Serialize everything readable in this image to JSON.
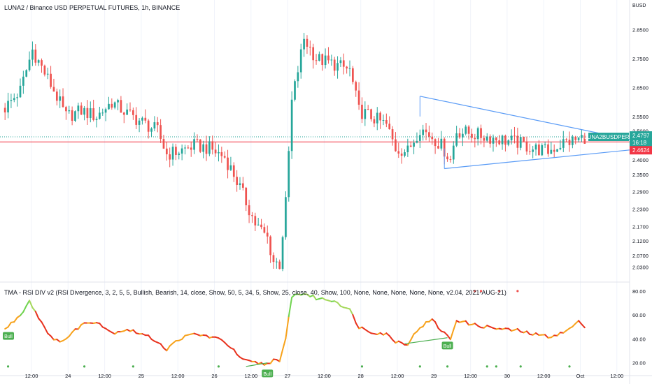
{
  "header": {
    "title": "LUNA2 / Binance USD PERPETUAL FUTURES, 1h, BINANCE",
    "currency": "BUSD"
  },
  "indicator": {
    "title": "TMA - RSI DIV v2 ",
    "params": "(RSI Divergence, 3, 2, 5, 5, Bullish, Bearish, 14, close, Show, 50, 5, 34, 5, Show, 25, close, 40, Show, 100, None, None, None, None, None, v2.04, 2021-AUG-21)",
    "bull_label": "Bull"
  },
  "price_tags": {
    "symbol": "LUNA2BUSDPERP",
    "last_price": "2.4797",
    "countdown": "16:18",
    "red_level": "2.4624"
  },
  "colors": {
    "up": "#26a69a",
    "down": "#ef5350",
    "triangle": "#5b9cf6",
    "red_line": "#f23645",
    "bull": "#4caf50"
  },
  "chart_data": [
    {
      "type": "candlestick",
      "title": "LUNA2 / Binance USD PERPETUAL FUTURES, 1h, BINANCE",
      "yunit": "BUSD",
      "y_ticks": [
        "2.8500",
        "2.7500",
        "2.6500",
        "2.5500",
        "2.5000",
        "2.4000",
        "2.3500",
        "2.2900",
        "2.2300",
        "2.1700",
        "2.1200",
        "2.0700",
        "2.0300"
      ],
      "x_ticks": [
        "12:00",
        "24",
        "12:00",
        "25",
        "12:00",
        "26",
        "12:00",
        "27",
        "12:00",
        "28",
        "12:00",
        "29",
        "12:00",
        "30",
        "12:00",
        "Oct",
        "12:00"
      ],
      "close_anchors": [
        [
          0,
          2.58
        ],
        [
          5,
          2.64
        ],
        [
          9,
          2.78
        ],
        [
          12,
          2.72
        ],
        [
          16,
          2.64
        ],
        [
          20,
          2.55
        ],
        [
          25,
          2.57
        ],
        [
          30,
          2.55
        ],
        [
          35,
          2.6
        ],
        [
          40,
          2.56
        ],
        [
          45,
          2.53
        ],
        [
          50,
          2.5
        ],
        [
          53,
          2.42
        ],
        [
          57,
          2.43
        ],
        [
          62,
          2.45
        ],
        [
          67,
          2.44
        ],
        [
          72,
          2.41
        ],
        [
          75,
          2.35
        ],
        [
          78,
          2.28
        ],
        [
          82,
          2.18
        ],
        [
          86,
          2.13
        ],
        [
          88,
          2.05
        ],
        [
          90,
          2.04
        ],
        [
          92,
          2.25
        ],
        [
          94,
          2.6
        ],
        [
          98,
          2.82
        ],
        [
          102,
          2.75
        ],
        [
          108,
          2.73
        ],
        [
          113,
          2.71
        ],
        [
          116,
          2.57
        ],
        [
          120,
          2.55
        ],
        [
          125,
          2.52
        ],
        [
          128,
          2.44
        ],
        [
          132,
          2.43
        ],
        [
          136,
          2.51
        ],
        [
          140,
          2.48
        ],
        [
          143,
          2.45
        ],
        [
          146,
          2.4
        ],
        [
          148,
          2.5
        ],
        [
          153,
          2.49
        ],
        [
          158,
          2.48
        ],
        [
          163,
          2.47
        ],
        [
          168,
          2.46
        ],
        [
          173,
          2.44
        ],
        [
          178,
          2.43
        ],
        [
          183,
          2.46
        ],
        [
          188,
          2.47
        ],
        [
          190,
          2.4797
        ]
      ],
      "last_price": 2.4797,
      "horizontal_level": 2.4624,
      "triangle": {
        "upper": [
          [
            136,
            2.62
          ],
          [
            205,
            2.47
          ]
        ],
        "lower": [
          [
            144,
            2.37
          ],
          [
            210,
            2.44
          ]
        ]
      }
    },
    {
      "type": "line",
      "title": "TMA - RSI DIV v2",
      "y_ticks": [
        "80.00",
        "60.00",
        "40.00",
        "20.00"
      ],
      "ylim": [
        14,
        84
      ],
      "rsi_anchors": [
        [
          0,
          48
        ],
        [
          5,
          60
        ],
        [
          8,
          72
        ],
        [
          11,
          58
        ],
        [
          14,
          46
        ],
        [
          16,
          38
        ],
        [
          20,
          40
        ],
        [
          25,
          52
        ],
        [
          30,
          55
        ],
        [
          35,
          45
        ],
        [
          40,
          48
        ],
        [
          45,
          44
        ],
        [
          50,
          38
        ],
        [
          53,
          31
        ],
        [
          57,
          40
        ],
        [
          62,
          44
        ],
        [
          67,
          42
        ],
        [
          72,
          38
        ],
        [
          75,
          30
        ],
        [
          78,
          22
        ],
        [
          82,
          20
        ],
        [
          86,
          19
        ],
        [
          88,
          23
        ],
        [
          90,
          20
        ],
        [
          92,
          40
        ],
        [
          94,
          76
        ],
        [
          98,
          78
        ],
        [
          102,
          74
        ],
        [
          108,
          72
        ],
        [
          113,
          64
        ],
        [
          116,
          50
        ],
        [
          120,
          46
        ],
        [
          125,
          44
        ],
        [
          128,
          38
        ],
        [
          132,
          36
        ],
        [
          136,
          50
        ],
        [
          140,
          56
        ],
        [
          143,
          47
        ],
        [
          146,
          40
        ],
        [
          148,
          56
        ],
        [
          153,
          52
        ],
        [
          158,
          50
        ],
        [
          163,
          48
        ],
        [
          168,
          47
        ],
        [
          173,
          44
        ],
        [
          178,
          42
        ],
        [
          183,
          45
        ],
        [
          188,
          54
        ],
        [
          190,
          51
        ]
      ],
      "bull_markers": [
        1,
        86,
        145
      ],
      "divergence_lines": [
        [
          [
            79,
            17
          ],
          [
            86,
            20
          ]
        ],
        [
          [
            131,
            36
          ],
          [
            145,
            41
          ]
        ]
      ],
      "red_dots": [
        154,
        156,
        162,
        168
      ],
      "green_dots": [
        1,
        26,
        42,
        70,
        117,
        136,
        145,
        158,
        161,
        169,
        185
      ]
    }
  ]
}
